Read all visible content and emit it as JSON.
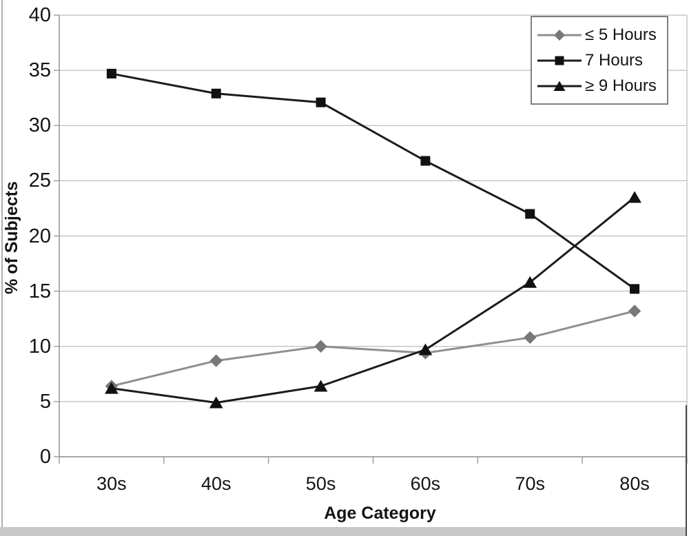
{
  "chart_data": {
    "type": "line",
    "title": "",
    "xlabel": "Age Category",
    "ylabel": "% of Subjects",
    "ylim": [
      0,
      40
    ],
    "yticks": [
      0,
      5,
      10,
      15,
      20,
      25,
      30,
      35,
      40
    ],
    "grid": "horizontal",
    "legend_position": "top-right",
    "categories": [
      "30s",
      "40s",
      "50s",
      "60s",
      "70s",
      "80s"
    ],
    "series": [
      {
        "name": "≤ 5 Hours",
        "marker": "diamond",
        "line_color": "#8f8f8f",
        "marker_color": "#787878",
        "values": [
          6.4,
          8.7,
          10.0,
          9.4,
          10.8,
          13.2
        ]
      },
      {
        "name": "7 Hours",
        "marker": "square",
        "line_color": "#1b1b1b",
        "marker_color": "#111111",
        "values": [
          34.7,
          32.9,
          32.1,
          26.8,
          22.0,
          15.2
        ]
      },
      {
        "name": "≥ 9 Hours",
        "marker": "triangle",
        "line_color": "#1b1b1b",
        "marker_color": "#111111",
        "values": [
          6.2,
          4.9,
          6.4,
          9.7,
          15.8,
          23.5
        ]
      }
    ]
  },
  "colors": {
    "gridline": "#bdbdbd",
    "axis": "#8a8a8a",
    "tick": "#9a9a9a",
    "text": "#141414",
    "legend_border": "#7f7f7f",
    "chrome_strip": "#c8c8c8"
  }
}
